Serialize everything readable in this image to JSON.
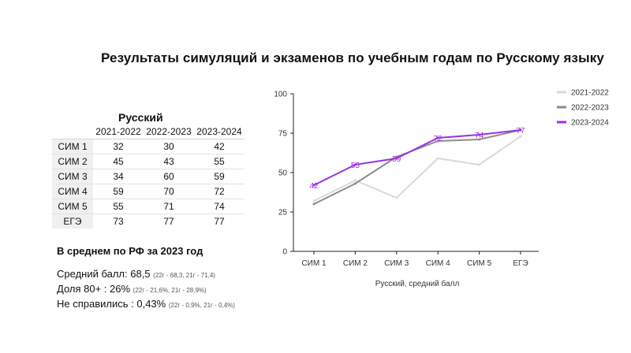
{
  "title": "Результаты симуляций и экзаменов по учебным годам по Русскому языку",
  "table": {
    "caption": "Русский",
    "columns": [
      "2021-2022",
      "2022-2023",
      "2023-2024"
    ],
    "rows": [
      {
        "label": "СИМ 1",
        "values": [
          "32",
          "30",
          "42"
        ]
      },
      {
        "label": "СИМ 2",
        "values": [
          "45",
          "43",
          "55"
        ]
      },
      {
        "label": "СИМ 3",
        "values": [
          "34",
          "60",
          "59"
        ]
      },
      {
        "label": "СИМ 4",
        "values": [
          "59",
          "70",
          "72"
        ]
      },
      {
        "label": "СИМ 5",
        "values": [
          "55",
          "71",
          "74"
        ]
      },
      {
        "label": "ЕГЭ",
        "values": [
          "73",
          "77",
          "77"
        ]
      }
    ]
  },
  "stats": {
    "heading": "В среднем по РФ за 2023 год",
    "lines": [
      {
        "main": "Средний балл: 68,5",
        "small": "(22г - 68,3, 21г - 71,4)"
      },
      {
        "main": "Доля 80+ : 26%",
        "small": "(22г - 21,6%, 21г - 28,9%)"
      },
      {
        "main": "Не справились : 0,43%",
        "small": "(22г - 0,9%, 21г - 0,4%)"
      }
    ]
  },
  "chart_data": {
    "type": "line",
    "title": "",
    "xlabel": "Русский, средний балл",
    "ylabel": "",
    "categories": [
      "СИМ 1",
      "СИМ 2",
      "СИМ 3",
      "СИМ 4",
      "СИМ 5",
      "ЕГЭ"
    ],
    "yticks": [
      "0",
      "25",
      "50",
      "75",
      "100"
    ],
    "ylim": [
      0,
      100
    ],
    "grid": false,
    "legend_position": "right",
    "series": [
      {
        "name": "2021-2022",
        "color": "#d9d9d9",
        "values": [
          32,
          45,
          34,
          59,
          55,
          73
        ],
        "data_labels": false
      },
      {
        "name": "2022-2023",
        "color": "#8c8c8c",
        "values": [
          30,
          43,
          60,
          70,
          71,
          77
        ],
        "data_labels": false
      },
      {
        "name": "2023-2024",
        "color": "#9b30e6",
        "values": [
          42,
          55,
          59,
          72,
          74,
          77
        ],
        "data_labels": true
      }
    ]
  }
}
